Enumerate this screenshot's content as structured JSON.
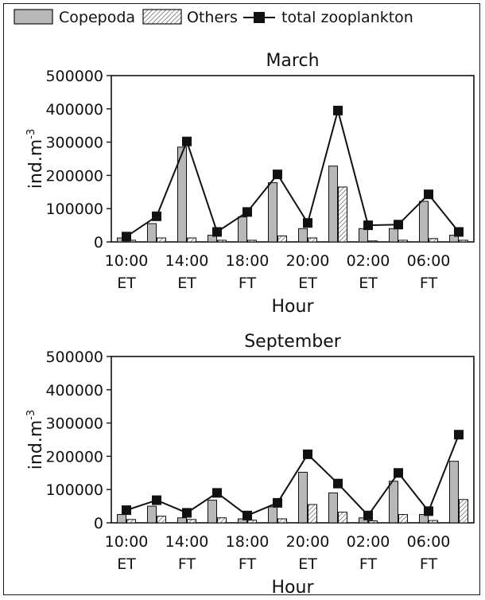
{
  "legend": {
    "items": [
      {
        "label": "Copepoda",
        "kind": "bar-solid"
      },
      {
        "label": "Others",
        "kind": "bar-hatched"
      },
      {
        "label": "total zooplankton",
        "kind": "line-square"
      }
    ]
  },
  "colors": {
    "copepoda_fill": "#b8b8b8",
    "others_hatch": "#444444",
    "line": "#111111",
    "marker": "#111111"
  },
  "chart_data": [
    {
      "type": "bar",
      "title": "March",
      "xlabel": "Hour",
      "ylabel": "ind.m",
      "ylabel_superscript": "-3",
      "ylim": [
        0,
        500000
      ],
      "yticks": [
        "0",
        "100000",
        "200000",
        "300000",
        "400000",
        "500000"
      ],
      "xtick_labels": [
        {
          "time": "10:00",
          "tide": "ET"
        },
        {
          "time": "14:00",
          "tide": "ET"
        },
        {
          "time": "18:00",
          "tide": "FT"
        },
        {
          "time": "20:00",
          "tide": "ET"
        },
        {
          "time": "02:00",
          "tide": "ET"
        },
        {
          "time": "06:00",
          "tide": "FT"
        }
      ],
      "series": [
        {
          "name": "Copepoda",
          "type": "bar",
          "values": [
            12000,
            55000,
            285000,
            20000,
            75000,
            178000,
            40000,
            228000,
            40000,
            40000,
            122000,
            20000
          ]
        },
        {
          "name": "Others",
          "type": "bar",
          "values": [
            5000,
            12000,
            12000,
            5000,
            5000,
            18000,
            12000,
            165000,
            3000,
            5000,
            10000,
            5000
          ]
        },
        {
          "name": "total zooplankton",
          "type": "line",
          "values": [
            16000,
            77000,
            302000,
            30000,
            90000,
            203000,
            57000,
            395000,
            50000,
            52000,
            143000,
            30000
          ]
        }
      ]
    },
    {
      "type": "bar",
      "title": "September",
      "xlabel": "Hour",
      "ylabel": "ind.m",
      "ylabel_superscript": "-3",
      "ylim": [
        0,
        500000
      ],
      "yticks": [
        "0",
        "100000",
        "200000",
        "300000",
        "400000",
        "500000"
      ],
      "xtick_labels": [
        {
          "time": "10:00",
          "tide": "ET"
        },
        {
          "time": "14:00",
          "tide": "FT"
        },
        {
          "time": "18:00",
          "tide": "FT"
        },
        {
          "time": "20:00",
          "tide": "ET"
        },
        {
          "time": "02:00",
          "tide": "FT"
        },
        {
          "time": "06:00",
          "tide": "FT"
        }
      ],
      "series": [
        {
          "name": "Copepoda",
          "type": "bar",
          "values": [
            25000,
            50000,
            15000,
            68000,
            12000,
            48000,
            152000,
            90000,
            15000,
            125000,
            25000,
            185000
          ]
        },
        {
          "name": "Others",
          "type": "bar",
          "values": [
            10000,
            20000,
            10000,
            15000,
            8000,
            12000,
            55000,
            32000,
            6000,
            25000,
            7000,
            70000
          ]
        },
        {
          "name": "total zooplankton",
          "type": "line",
          "values": [
            38000,
            68000,
            30000,
            90000,
            22000,
            60000,
            206000,
            118000,
            22000,
            150000,
            35000,
            265000
          ]
        }
      ]
    }
  ]
}
